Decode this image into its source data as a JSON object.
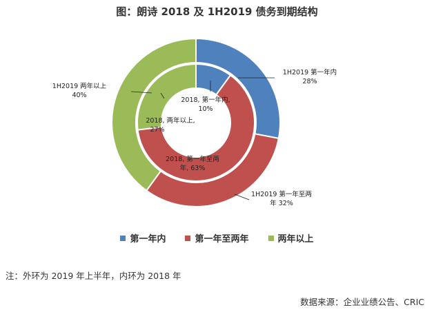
{
  "title": "图：朗诗 2018 及 1H2019 债务到期结构",
  "colors": {
    "blue": "#4f81bd",
    "red": "#c0504d",
    "green": "#9bbb59"
  },
  "legend": [
    "第一年内",
    "第一年至两年",
    "两年以上"
  ],
  "chart_data": {
    "type": "donut",
    "categories": [
      "第一年内",
      "第一年至两年",
      "两年以上"
    ],
    "series": [
      {
        "ring": "outer",
        "values": [
          28,
          32,
          40
        ],
        "labels": [
          "1H2019 第一年内",
          "1H2019 第一年至两",
          "1H2019 两年以上"
        ],
        "label_values": [
          "28%",
          "年 32%",
          "40%"
        ]
      },
      {
        "ring": "inner",
        "values": [
          10,
          63,
          27
        ],
        "labels": [
          "2018, 第一年内,",
          "2018, 第一年至两",
          "2018, 两年以上,"
        ],
        "label_values": [
          "10%",
          "年, 63%",
          "27%"
        ]
      }
    ]
  },
  "note": "注：外环为 2019 年上半年，内环为 2018 年",
  "source": "数据来源：企业业绩公告、CRIC"
}
